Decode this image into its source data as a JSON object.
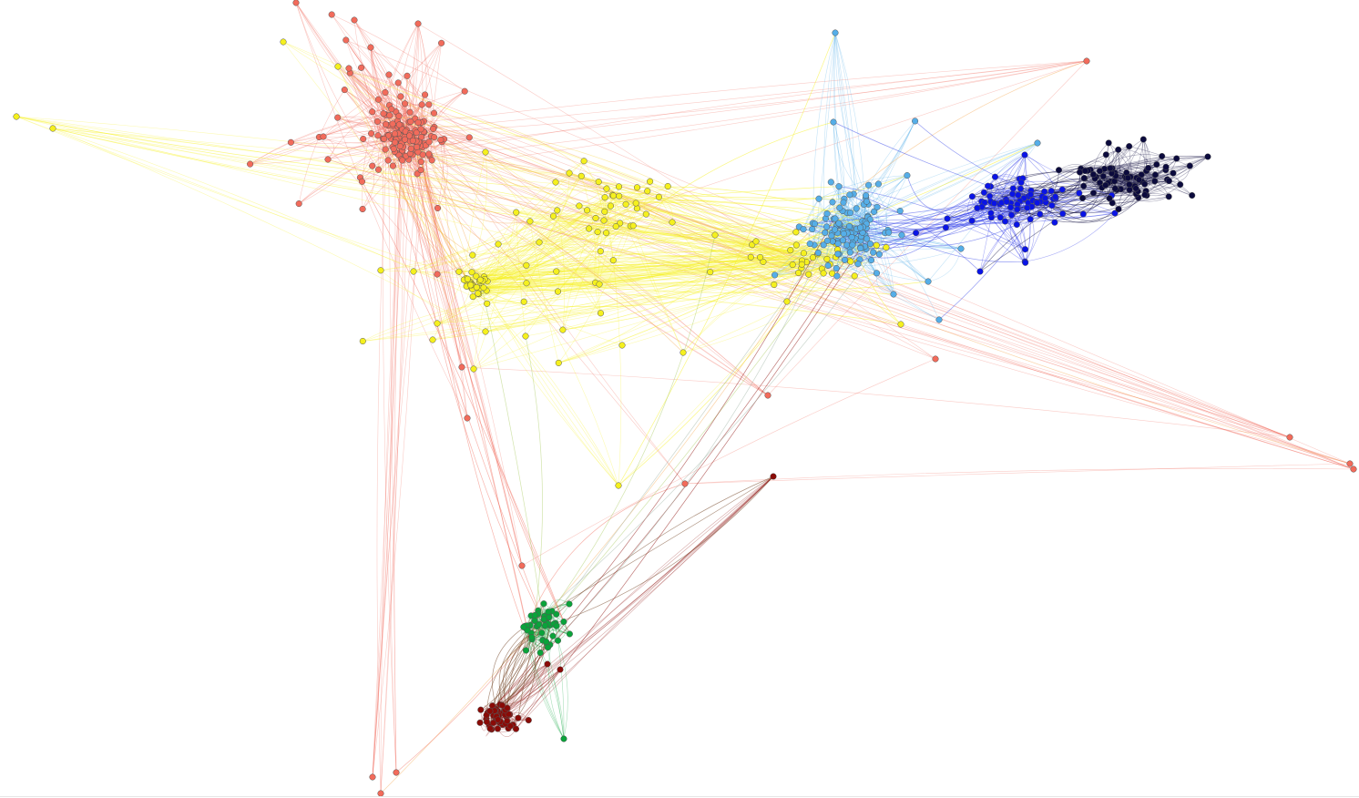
{
  "graph": {
    "type": "network",
    "labels_shown": false,
    "background_color": "#ffffff",
    "communities": [
      {
        "id": "salmon",
        "color": "#f26b5b",
        "node_count": 140
      },
      {
        "id": "yellow",
        "color": "#f5f01e",
        "node_count": 110
      },
      {
        "id": "light-blue",
        "color": "#55aee8",
        "node_count": 110
      },
      {
        "id": "blue",
        "color": "#0a14e6",
        "node_count": 70
      },
      {
        "id": "navy",
        "color": "#0b0a3d",
        "node_count": 75
      },
      {
        "id": "green",
        "color": "#0aa33a",
        "node_count": 45
      },
      {
        "id": "dark-red",
        "color": "#8a0a06",
        "node_count": 50
      }
    ]
  }
}
